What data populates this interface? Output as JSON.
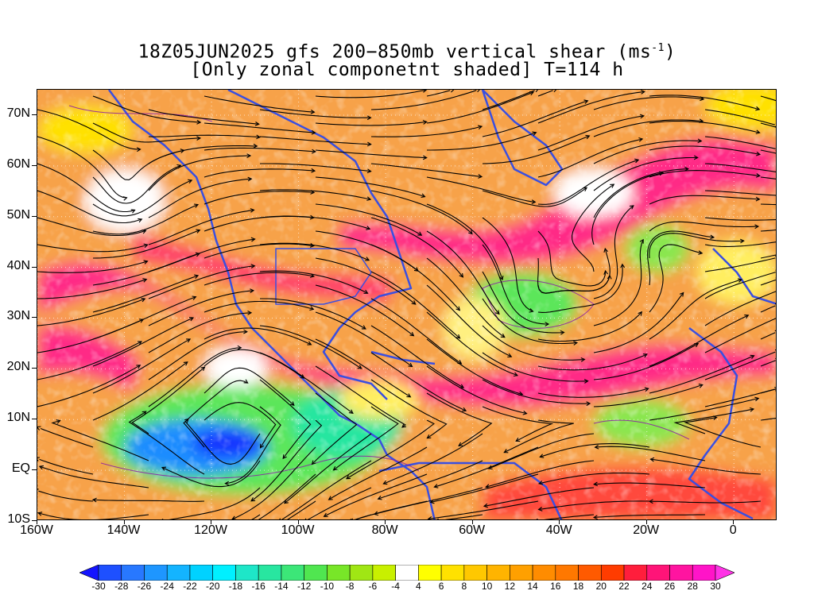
{
  "title": {
    "line1_prefix": "18Z05JUN2025 gfs 200−850mb vertical shear (ms",
    "line1_sup": "-1",
    "line1_suffix": ")",
    "line2": "[Only zonal componetnt shaded] T=114 h"
  },
  "map": {
    "lon_range": [
      -160,
      10
    ],
    "lat_range": [
      -10,
      75
    ],
    "lat_labels": [
      "70N",
      "60N",
      "50N",
      "40N",
      "30N",
      "20N",
      "10N",
      "EQ",
      "10S"
    ],
    "lat_values": [
      70,
      60,
      50,
      40,
      30,
      20,
      10,
      0,
      -10
    ],
    "lon_labels": [
      "160W",
      "140W",
      "120W",
      "100W",
      "80W",
      "60W",
      "40W",
      "20W",
      "0"
    ],
    "lon_values": [
      -160,
      -140,
      -120,
      -100,
      -80,
      -60,
      -40,
      -20,
      0
    ],
    "coastline_color": "#3a4fe0",
    "streamline_color": "#000000",
    "contour_color": "#8a1aa8"
  },
  "colorbar": {
    "labels": [
      "-30",
      "-28",
      "-26",
      "-24",
      "-22",
      "-20",
      "-18",
      "-16",
      "-14",
      "-12",
      "-10",
      "-8",
      "-6",
      "-4",
      "4",
      "6",
      "8",
      "10",
      "12",
      "14",
      "16",
      "18",
      "20",
      "22",
      "24",
      "26",
      "28",
      "30"
    ],
    "colors": [
      "#1414ff",
      "#1e50ff",
      "#2878ff",
      "#1e96ff",
      "#14b4ff",
      "#00d2ff",
      "#00f0ff",
      "#1ee6c8",
      "#28e6a0",
      "#3ce678",
      "#50e650",
      "#78e628",
      "#a0e614",
      "#c8f000",
      "#ffffff",
      "#ffff00",
      "#ffe100",
      "#ffc800",
      "#ffb400",
      "#ffa000",
      "#ff8c00",
      "#ff7800",
      "#ff5a00",
      "#ff3c00",
      "#ff1e3c",
      "#ff1478",
      "#ff14a0",
      "#ff14c8",
      "#ff32e6"
    ]
  }
}
